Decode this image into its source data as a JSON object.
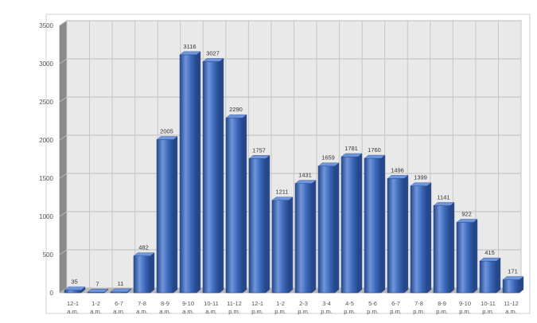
{
  "chart_data": {
    "type": "bar",
    "title": "",
    "xlabel": "",
    "ylabel": "",
    "ylim": [
      0,
      3500
    ],
    "y_ticks": [
      0,
      500,
      1000,
      1500,
      2000,
      2500,
      3000,
      3500
    ],
    "grid": true,
    "legend": "none",
    "style": "3d",
    "bar_color": "#3a66b8",
    "bar_dark": "#26488a",
    "bar_light": "#6f95db",
    "categories": [
      {
        "top": "12-1",
        "bottom": "a.m."
      },
      {
        "top": "1-2",
        "bottom": "a.m."
      },
      {
        "top": "6-7",
        "bottom": "a.m."
      },
      {
        "top": "7-8",
        "bottom": "a.m."
      },
      {
        "top": "8-9",
        "bottom": "a.m."
      },
      {
        "top": "9-10",
        "bottom": "a.m."
      },
      {
        "top": "10-11",
        "bottom": "a.m."
      },
      {
        "top": "11-12",
        "bottom": "p.m."
      },
      {
        "top": "12-1",
        "bottom": "p.m."
      },
      {
        "top": "1-2",
        "bottom": "p.m."
      },
      {
        "top": "2-3",
        "bottom": "p.m."
      },
      {
        "top": "3-4",
        "bottom": "p.m."
      },
      {
        "top": "4-5",
        "bottom": "p.m."
      },
      {
        "top": "5-6",
        "bottom": "p.m."
      },
      {
        "top": "6-7",
        "bottom": "p.m."
      },
      {
        "top": "7-8",
        "bottom": "p.m."
      },
      {
        "top": "8-9",
        "bottom": "p.m."
      },
      {
        "top": "9-10",
        "bottom": "p.m."
      },
      {
        "top": "10-11",
        "bottom": "p.m."
      },
      {
        "top": "11-12",
        "bottom": "a.m."
      }
    ],
    "values": [
      35,
      7,
      11,
      482,
      2005,
      3116,
      3027,
      2290,
      1757,
      1211,
      1431,
      1659,
      1781,
      1760,
      1496,
      1399,
      1141,
      922,
      415,
      171
    ]
  }
}
